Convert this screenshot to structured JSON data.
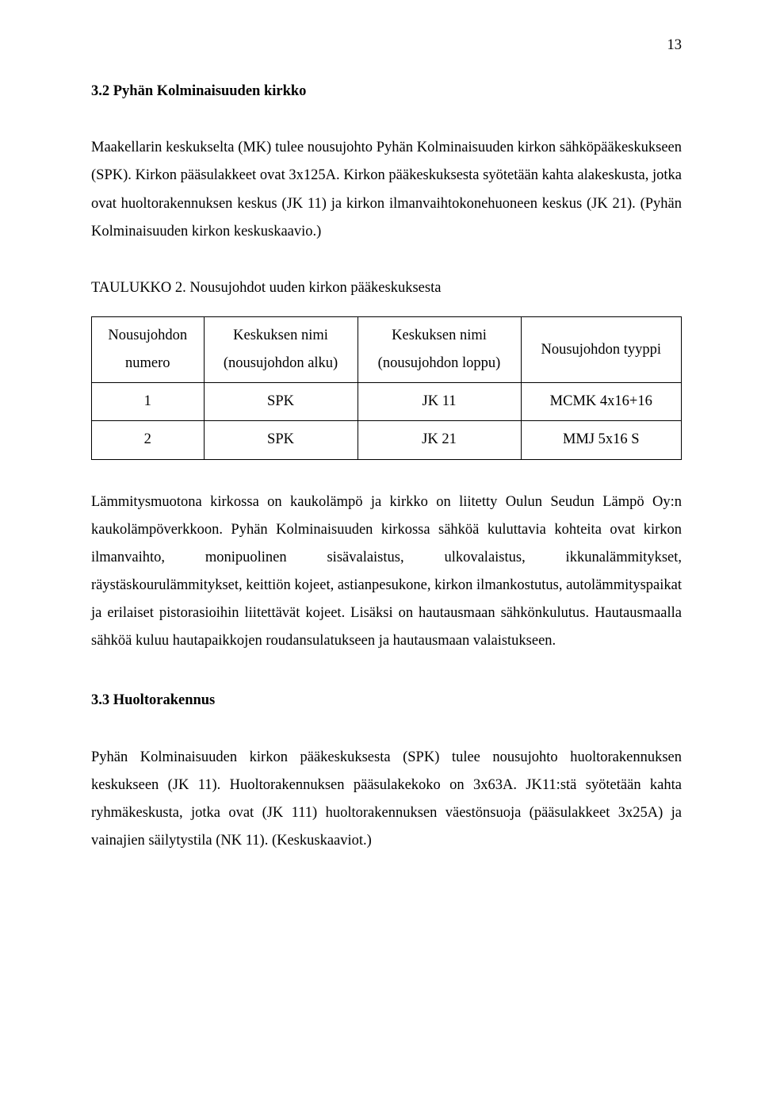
{
  "page_number": "13",
  "sections": {
    "s32_heading": "3.2 Pyhän Kolminaisuuden kirkko",
    "s32_p1": "Maakellarin keskukselta (MK) tulee nousujohto Pyhän Kolminaisuuden kirkon sähköpääkeskukseen (SPK). Kirkon pääsulakkeet ovat 3x125A. Kirkon pääkeskuksesta syötetään kahta alakeskusta, jotka ovat huoltorakennuksen keskus (JK 11) ja kirkon ilmanvaihtokonehuoneen keskus (JK 21). (Pyhän Kolminaisuuden kirkon keskuskaavio.)",
    "table_caption": "TAULUKKO 2. Nousujohdot uuden kirkon pääkeskuksesta",
    "table": {
      "columns": [
        "Nousujohdon numero",
        "Keskuksen nimi (nousujohdon alku)",
        "Keskuksen nimi (nousujohdon loppu)",
        "Nousujohdon tyyppi"
      ],
      "col0_l1": "Nousujohdon",
      "col0_l2": "numero",
      "col1_l1": "Keskuksen nimi",
      "col1_l2": "(nousujohdon alku)",
      "col2_l1": "Keskuksen nimi",
      "col2_l2": "(nousujohdon loppu)",
      "col3_l1": "Nousujohdon tyyppi",
      "rows": [
        [
          "1",
          "SPK",
          "JK 11",
          "MCMK 4x16+16"
        ],
        [
          "2",
          "SPK",
          "JK 21",
          "MMJ 5x16 S"
        ]
      ]
    },
    "s32_p2": "Lämmitysmuotona kirkossa on kaukolämpö ja kirkko on liitetty Oulun Seudun Lämpö Oy:n kaukolämpöverkkoon. Pyhän Kolminaisuuden kirkossa sähköä kuluttavia kohteita ovat kirkon ilmanvaihto, monipuolinen sisävalaistus, ulkovalaistus, ikkunalämmitykset, räystäskourulämmitykset, keittiön kojeet, astianpesukone, kirkon ilmankostutus, autolämmityspaikat ja erilaiset pistorasioihin liitettävät kojeet. Lisäksi on hautausmaan sähkönkulutus. Hautausmaalla sähköä kuluu hautapaikkojen roudansulatukseen ja hautausmaan valaistukseen.",
    "s33_heading": "3.3 Huoltorakennus",
    "s33_p1": "Pyhän Kolminaisuuden kirkon pääkeskuksesta (SPK) tulee nousujohto huoltorakennuksen keskukseen (JK 11). Huoltorakennuksen pääsulakekoko on 3x63A. JK11:stä syötetään kahta ryhmäkeskusta, jotka ovat (JK 111) huoltorakennuksen väestönsuoja (pääsulakkeet 3x25A) ja vainajien säilytystila (NK 11). (Keskuskaaviot.)"
  }
}
